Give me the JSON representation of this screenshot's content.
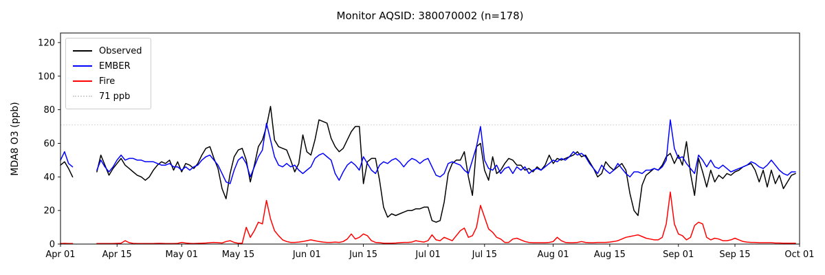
{
  "chart_data": {
    "type": "line",
    "title": "Monitor AQSID: 380070002 (n=178)",
    "xlabel": "",
    "ylabel": "MDA8 O3 (ppb)",
    "ylim": [
      0,
      125.7
    ],
    "yticks": [
      0,
      20,
      40,
      60,
      80,
      100,
      120
    ],
    "x_range_days": 183,
    "x_tick_days": [
      0,
      14,
      30,
      44,
      61,
      75,
      91,
      105,
      122,
      136,
      153,
      167,
      183
    ],
    "x_tick_labels": [
      "Apr 01",
      "Apr 15",
      "May 01",
      "May 15",
      "Jun 01",
      "Jun 15",
      "Jul 01",
      "Jul 15",
      "Aug 01",
      "Aug 15",
      "Sep 01",
      "Sep 15",
      "Oct 01"
    ],
    "grid": false,
    "legend_position": "upper left",
    "threshold": {
      "value": 71,
      "label": "71 ppb",
      "color": "#d3d3d3",
      "style": "dotted"
    },
    "series": [
      {
        "name": "Observed",
        "color": "#000000",
        "values": [
          47,
          49,
          45,
          40,
          null,
          null,
          null,
          null,
          null,
          43,
          53,
          47,
          41,
          45,
          48,
          51,
          47,
          45,
          43,
          41,
          40,
          38,
          40,
          44,
          47,
          49,
          48,
          50,
          44,
          49,
          43,
          48,
          47,
          45,
          48,
          53,
          57,
          58,
          51,
          45,
          33,
          27,
          42,
          52,
          56,
          57,
          50,
          37,
          47,
          58,
          62,
          70,
          82,
          62,
          58,
          57,
          56,
          50,
          43,
          48,
          65,
          55,
          53,
          62,
          74,
          73,
          72,
          63,
          58,
          55,
          57,
          62,
          67,
          70,
          70,
          36,
          49,
          51,
          51,
          38,
          22,
          16,
          18,
          17,
          18,
          19,
          20,
          20,
          21,
          21,
          22,
          22,
          14,
          13,
          14,
          25,
          42,
          48,
          50,
          50,
          55,
          40,
          29,
          58,
          60,
          44,
          38,
          52,
          42,
          44,
          48,
          51,
          50,
          47,
          47,
          44,
          45,
          43,
          46,
          44,
          47,
          53,
          48,
          51,
          50,
          51,
          52,
          53,
          55,
          52,
          53,
          49,
          45,
          40,
          42,
          49,
          46,
          44,
          46,
          48,
          44,
          30,
          20,
          17,
          35,
          41,
          43,
          45,
          44,
          47,
          52,
          54,
          48,
          53,
          47,
          61,
          42,
          29,
          51,
          43,
          34,
          44,
          37,
          41,
          39,
          42,
          41,
          43,
          44,
          46,
          47,
          48,
          44,
          37,
          44,
          34,
          44,
          36,
          41,
          33,
          37,
          41,
          42
        ]
      },
      {
        "name": "EMBER",
        "color": "#0000ff",
        "values": [
          50,
          55,
          48,
          46,
          null,
          null,
          null,
          null,
          null,
          44,
          50,
          46,
          43,
          46,
          50,
          53,
          50,
          51,
          51,
          50,
          50,
          49,
          49,
          49,
          48,
          47,
          47,
          48,
          46,
          46,
          44,
          46,
          44,
          46,
          47,
          50,
          52,
          53,
          50,
          47,
          42,
          37,
          36,
          44,
          50,
          52,
          48,
          40,
          46,
          52,
          56,
          72,
          62,
          52,
          47,
          46,
          48,
          46,
          47,
          44,
          42,
          44,
          46,
          51,
          53,
          54,
          52,
          50,
          42,
          38,
          43,
          47,
          49,
          47,
          44,
          52,
          48,
          44,
          42,
          47,
          49,
          48,
          50,
          51,
          49,
          46,
          49,
          51,
          50,
          48,
          50,
          51,
          46,
          41,
          40,
          42,
          48,
          49,
          48,
          47,
          44,
          42,
          50,
          58,
          70,
          50,
          45,
          44,
          47,
          42,
          45,
          46,
          42,
          46,
          44,
          46,
          42,
          44,
          45,
          44,
          46,
          48,
          50,
          49,
          51,
          50,
          52,
          55,
          53,
          54,
          52,
          48,
          45,
          42,
          47,
          44,
          42,
          44,
          48,
          45,
          42,
          40,
          43,
          43,
          42,
          44,
          44,
          45,
          44,
          46,
          50,
          74,
          57,
          51,
          52,
          48,
          45,
          42,
          53,
          50,
          46,
          50,
          46,
          45,
          47,
          45,
          43,
          44,
          45,
          46,
          47,
          49,
          48,
          46,
          45,
          47,
          50,
          47,
          44,
          42,
          41,
          43,
          43
        ]
      },
      {
        "name": "Fire",
        "color": "#ff0000",
        "values": [
          0.3,
          0.4,
          0.3,
          0.3,
          null,
          null,
          null,
          null,
          null,
          0.3,
          0.3,
          0.3,
          0.3,
          0.3,
          0.4,
          0.5,
          2,
          0.8,
          0.4,
          0.3,
          0.3,
          0.3,
          0.3,
          0.3,
          0.4,
          0.4,
          0.3,
          0.3,
          0.3,
          0.4,
          1,
          0.6,
          0.4,
          0.3,
          0.4,
          0.5,
          0.6,
          0.8,
          1,
          0.8,
          0.6,
          1.5,
          2,
          1,
          0.5,
          0.5,
          10,
          4,
          8,
          13,
          12,
          26,
          15,
          8,
          5,
          2.5,
          1.5,
          1,
          1,
          1.2,
          1.5,
          2,
          2.5,
          2,
          1.5,
          1.2,
          1,
          1,
          1.2,
          1,
          1.5,
          3,
          6,
          3,
          4,
          6,
          5,
          2,
          1,
          0.8,
          0.5,
          0.5,
          0.5,
          0.6,
          0.8,
          1,
          1,
          1.2,
          2,
          1.5,
          1.2,
          2,
          5.5,
          2.5,
          2,
          4,
          3,
          2,
          5,
          8,
          9.5,
          4,
          5,
          10,
          23,
          16,
          9,
          7,
          4,
          3,
          1,
          1,
          3,
          3.5,
          2.5,
          1.5,
          1,
          0.8,
          0.8,
          0.8,
          0.8,
          1,
          1.5,
          4,
          2,
          1,
          0.8,
          0.8,
          1,
          1.5,
          1,
          0.8,
          0.8,
          1,
          1,
          1,
          1.2,
          1.5,
          2,
          3,
          4,
          4.5,
          5,
          5.5,
          4.5,
          3.5,
          3,
          2.5,
          2.5,
          4,
          12,
          31,
          12,
          6,
          5,
          2.5,
          4,
          11,
          13,
          12,
          4,
          2.5,
          3.5,
          3,
          2,
          2,
          2.5,
          3.5,
          2.5,
          1.5,
          1.2,
          1,
          1,
          0.8,
          0.8,
          0.8,
          0.8,
          0.6,
          0.6,
          0.5,
          0.5,
          0.5,
          0.5
        ]
      }
    ]
  }
}
